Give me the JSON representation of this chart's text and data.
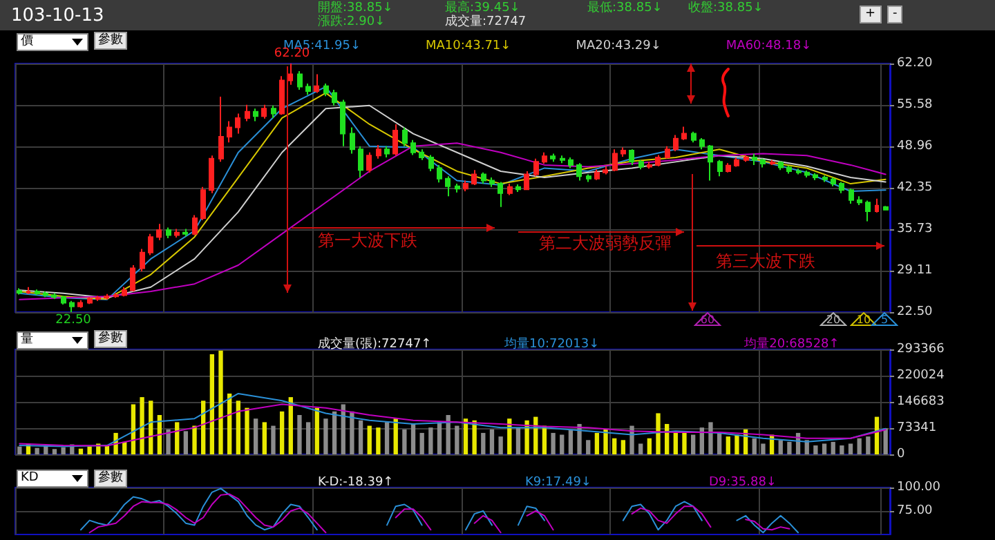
{
  "chart_data": [
    {
      "type": "other",
      "title": "103-10-13",
      "annotations": [
        "開盤:38.85↓",
        "最高:39.45↓",
        "最低:38.85↓",
        "收盤:38.85↓",
        "漲跌:2.90↓",
        "成交量:72747",
        "+",
        "-"
      ]
    },
    {
      "type": "candlestick",
      "categories": [
        null,
        null,
        null,
        null,
        null,
        null,
        null,
        null,
        null,
        null,
        null,
        null,
        null,
        null,
        null,
        null,
        null,
        null,
        null,
        null,
        null,
        null,
        null,
        null,
        null,
        null,
        null,
        null,
        null,
        null,
        null,
        null,
        null,
        null,
        null,
        null,
        null,
        null,
        null,
        null,
        null,
        null,
        null,
        null,
        null,
        null,
        null,
        null,
        null,
        null,
        null,
        null,
        null,
        null,
        null,
        null,
        null,
        null,
        null,
        null,
        null,
        null,
        null,
        null,
        null,
        null,
        null,
        null,
        null,
        null,
        null,
        null,
        null,
        null,
        null,
        null,
        null,
        null,
        null,
        null,
        null,
        null,
        null,
        null,
        null,
        null,
        null,
        null,
        null,
        null,
        null,
        null,
        null,
        null,
        null,
        null,
        null,
        null,
        null,
        null
      ],
      "colors": [
        "#20e020",
        "#ff2020",
        "#20e020",
        "#20e020",
        "#20e020",
        "#20e020",
        "#20e020",
        "#ff2020",
        "#ff2020",
        "#ff2020",
        "#ff2020",
        "#ff2020",
        "#ff2020",
        "#ff2020",
        "#ff2020",
        "#ff2020",
        "#ff2020",
        "#20e020",
        "#ff2020",
        "#20e020",
        "#ff2020",
        "#ff2020",
        "#ff2020",
        "#ff2020",
        "#ff2020",
        "#ff2020",
        "#ff2020",
        "#20e020",
        "#ff2020",
        "#20e020",
        "#ff2020",
        "#ff2020",
        "#20e020",
        "#20e020",
        "#ff2020",
        "#20e020",
        "#20e020",
        "#20e020",
        "#20e020",
        "#20e020",
        "#ff2020",
        "#ff2020",
        "#20e020",
        "#ff2020",
        "#20e020",
        "#20e020",
        "#20e020",
        "#20e020",
        "#20e020",
        "#20e020",
        "#20e020",
        "#ff2020",
        "#ff2020",
        "#20e020",
        "#20e020",
        "#20e020",
        "#ff2020",
        "#20e020",
        "#ff2020",
        "#ff2020",
        "#ff2020",
        "#20e020",
        "#20e020",
        "#20e020",
        "#20e020",
        "#20e020",
        "#ff2020",
        "#ff2020",
        "#ff2020",
        "#ff2020",
        "#20e020",
        "#20e020",
        "#ff2020",
        "#ff2020",
        "#ff2020",
        "#ff2020",
        "#ff2020",
        "#20e020",
        "#20e020",
        "#20e020",
        "#20e020",
        "#ff2020",
        "#ff2020",
        "#ff2020",
        "#20e020",
        "#20e020",
        "#ff2020",
        "#20e020",
        "#20e020",
        "#20e020",
        "#20e020",
        "#20e020",
        "#20e020",
        "#20e020",
        "#20e020",
        "#20e020",
        "#20e020",
        "#20e020",
        "#ff2020",
        "#20e020"
      ],
      "ohlc": [
        [
          25.9,
          26.3,
          25.3,
          25.6
        ],
        [
          25.6,
          26.5,
          25.4,
          25.8
        ],
        [
          25.8,
          26.1,
          25.2,
          25.5
        ],
        [
          25.5,
          25.8,
          24.9,
          25.2
        ],
        [
          25.2,
          25.5,
          24.6,
          24.9
        ],
        [
          24.9,
          25.1,
          23.7,
          24.0
        ],
        [
          24.0,
          24.3,
          22.5,
          23.4
        ],
        [
          23.4,
          24.4,
          23.2,
          24.0
        ],
        [
          24.0,
          24.9,
          23.8,
          24.6
        ],
        [
          24.6,
          25.1,
          24.3,
          24.8
        ],
        [
          24.8,
          25.4,
          24.5,
          25.0
        ],
        [
          25.0,
          25.6,
          24.8,
          25.2
        ],
        [
          25.2,
          26.5,
          25.0,
          26.0
        ],
        [
          26.0,
          30.0,
          25.8,
          29.5
        ],
        [
          29.5,
          32.6,
          29.0,
          32.0
        ],
        [
          32.0,
          35.0,
          31.6,
          34.5
        ],
        [
          34.5,
          36.6,
          34.0,
          35.6
        ],
        [
          35.6,
          36.0,
          34.3,
          34.8
        ],
        [
          34.8,
          35.8,
          34.4,
          35.2
        ],
        [
          35.2,
          35.8,
          34.6,
          35.0
        ],
        [
          35.0,
          38.0,
          34.8,
          37.5
        ],
        [
          37.5,
          42.5,
          37.2,
          42.0
        ],
        [
          42.0,
          47.5,
          41.5,
          47.0
        ],
        [
          47.0,
          56.9,
          46.5,
          50.5
        ],
        [
          50.5,
          53.0,
          49.6,
          52.0
        ],
        [
          52.0,
          54.2,
          51.0,
          53.5
        ],
        [
          53.5,
          55.6,
          53.0,
          54.5
        ],
        [
          54.5,
          55.0,
          53.0,
          53.8
        ],
        [
          53.8,
          55.6,
          53.4,
          55.0
        ],
        [
          55.0,
          55.5,
          53.5,
          54.2
        ],
        [
          54.2,
          60.2,
          54.0,
          59.5
        ],
        [
          59.5,
          62.2,
          58.8,
          60.5
        ],
        [
          60.5,
          61.0,
          58.0,
          58.5
        ],
        [
          58.5,
          59.0,
          57.2,
          57.8
        ],
        [
          57.8,
          60.5,
          57.5,
          58.6
        ],
        [
          58.6,
          59.0,
          57.0,
          57.5
        ],
        [
          57.5,
          58.0,
          55.5,
          56.0
        ],
        [
          56.0,
          56.4,
          49.0,
          51.0
        ],
        [
          51.0,
          52.0,
          47.8,
          48.5
        ],
        [
          48.5,
          49.0,
          44.0,
          45.2
        ],
        [
          45.2,
          48.0,
          44.8,
          47.5
        ],
        [
          47.5,
          49.2,
          47.0,
          48.5
        ],
        [
          48.5,
          49.0,
          47.2,
          47.8
        ],
        [
          47.8,
          52.5,
          47.5,
          51.5
        ],
        [
          51.5,
          52.0,
          49.0,
          49.5
        ],
        [
          49.5,
          50.0,
          47.6,
          48.0
        ],
        [
          48.0,
          48.5,
          46.8,
          47.2
        ],
        [
          47.2,
          47.6,
          45.0,
          45.5
        ],
        [
          45.5,
          46.0,
          43.2,
          43.8
        ],
        [
          43.8,
          44.2,
          41.0,
          42.6
        ],
        [
          42.6,
          43.0,
          41.6,
          42.2
        ],
        [
          42.2,
          43.5,
          41.8,
          43.0
        ],
        [
          43.0,
          45.2,
          42.8,
          44.5
        ],
        [
          44.5,
          44.8,
          43.0,
          43.5
        ],
        [
          43.5,
          44.0,
          42.5,
          43.0
        ],
        [
          43.0,
          43.3,
          39.3,
          41.5
        ],
        [
          41.5,
          43.0,
          41.2,
          42.5
        ],
        [
          42.5,
          42.9,
          41.7,
          42.1
        ],
        [
          42.1,
          45.0,
          42.0,
          44.5
        ],
        [
          44.5,
          47.0,
          44.2,
          46.5
        ],
        [
          46.5,
          48.0,
          46.2,
          47.4
        ],
        [
          47.4,
          47.8,
          46.5,
          47.0
        ],
        [
          47.0,
          47.5,
          46.3,
          46.8
        ],
        [
          46.8,
          47.2,
          45.5,
          46.0
        ],
        [
          46.0,
          46.3,
          43.5,
          44.2
        ],
        [
          44.2,
          44.5,
          43.3,
          43.8
        ],
        [
          43.8,
          45.3,
          43.6,
          44.8
        ],
        [
          44.8,
          45.8,
          44.5,
          45.2
        ],
        [
          45.2,
          48.5,
          45.0,
          47.8
        ],
        [
          47.8,
          48.8,
          47.3,
          48.3
        ],
        [
          48.3,
          48.5,
          46.0,
          46.5
        ],
        [
          46.5,
          46.8,
          45.3,
          45.7
        ],
        [
          45.7,
          46.5,
          45.4,
          46.0
        ],
        [
          46.0,
          47.6,
          45.8,
          47.2
        ],
        [
          47.2,
          49.0,
          47.0,
          48.5
        ],
        [
          48.5,
          50.8,
          48.2,
          50.2
        ],
        [
          50.2,
          52.1,
          50.0,
          51.0
        ],
        [
          51.0,
          51.3,
          49.6,
          50.0
        ],
        [
          50.0,
          50.3,
          48.5,
          49.0
        ],
        [
          49.0,
          49.2,
          43.5,
          46.5
        ],
        [
          46.5,
          46.8,
          44.2,
          45.0
        ],
        [
          45.0,
          46.3,
          44.8,
          45.9
        ],
        [
          45.9,
          47.2,
          45.7,
          46.8
        ],
        [
          46.8,
          47.6,
          46.5,
          47.2
        ],
        [
          47.2,
          47.8,
          46.0,
          46.8
        ],
        [
          46.8,
          47.0,
          45.6,
          46.2
        ],
        [
          46.2,
          46.8,
          46.0,
          46.4
        ],
        [
          46.4,
          46.6,
          45.2,
          45.6
        ],
        [
          45.6,
          45.9,
          44.6,
          45.0
        ],
        [
          45.0,
          45.4,
          44.5,
          44.8
        ],
        [
          44.8,
          45.1,
          44.0,
          44.4
        ],
        [
          44.4,
          44.7,
          43.6,
          44.0
        ],
        [
          44.0,
          44.3,
          43.3,
          43.7
        ],
        [
          43.7,
          44.0,
          42.6,
          43.0
        ],
        [
          43.0,
          43.3,
          41.5,
          42.0
        ],
        [
          42.0,
          42.2,
          39.8,
          40.4
        ],
        [
          40.4,
          41.0,
          39.6,
          40.0
        ],
        [
          40.0,
          40.3,
          37.0,
          38.6
        ],
        [
          38.6,
          40.6,
          38.4,
          39.5
        ],
        [
          39.3,
          39.45,
          38.85,
          38.85
        ]
      ],
      "series": [
        {
          "type": "line",
          "name": "MA5:41.95↓",
          "color": "#2a90d8",
          "values": [
            25.5,
            null,
            null,
            null,
            null,
            24.8,
            null,
            null,
            null,
            null,
            24.5,
            null,
            null,
            null,
            null,
            31,
            null,
            null,
            null,
            null,
            35.5,
            null,
            null,
            null,
            null,
            48,
            null,
            null,
            null,
            null,
            55,
            null,
            null,
            null,
            null,
            58.5,
            null,
            null,
            null,
            null,
            49,
            null,
            null,
            null,
            null,
            48.8,
            null,
            null,
            null,
            null,
            43.5,
            null,
            null,
            null,
            null,
            42.8,
            null,
            null,
            null,
            null,
            45.5,
            null,
            null,
            null,
            null,
            45,
            null,
            null,
            null,
            null,
            47,
            null,
            null,
            null,
            null,
            48.5,
            null,
            null,
            null,
            null,
            47.5,
            null,
            null,
            null,
            null,
            46.5,
            null,
            null,
            null,
            null,
            44.8,
            null,
            null,
            null,
            null,
            41.8,
            null,
            null,
            null,
            42.0
          ]
        },
        {
          "type": "line",
          "name": "MA10:43.71↓",
          "color": "#d8c800",
          "values": [
            25.8,
            null,
            null,
            null,
            null,
            25,
            null,
            null,
            null,
            null,
            24.6,
            null,
            null,
            null,
            null,
            28.5,
            null,
            null,
            null,
            null,
            34.5,
            null,
            null,
            null,
            null,
            44,
            null,
            null,
            null,
            null,
            53.5,
            null,
            null,
            null,
            null,
            57.5,
            null,
            null,
            null,
            null,
            52.5,
            null,
            null,
            null,
            null,
            48.5,
            null,
            null,
            null,
            null,
            45,
            null,
            null,
            null,
            null,
            43,
            null,
            null,
            null,
            null,
            44.2,
            null,
            null,
            null,
            null,
            45.5,
            null,
            null,
            null,
            null,
            46.6,
            null,
            null,
            null,
            null,
            47.2,
            null,
            null,
            null,
            null,
            48.5,
            null,
            null,
            null,
            null,
            46.6,
            null,
            null,
            null,
            null,
            45.5,
            null,
            null,
            null,
            null,
            43,
            null,
            null,
            null,
            43.7
          ]
        },
        {
          "type": "line",
          "name": "MA20:43.29↓",
          "color": "#d0d0d0",
          "values": [
            26,
            null,
            null,
            null,
            null,
            25.5,
            null,
            null,
            null,
            null,
            24.8,
            null,
            null,
            null,
            null,
            26.5,
            null,
            null,
            null,
            null,
            31,
            null,
            null,
            null,
            null,
            38.5,
            null,
            null,
            null,
            null,
            48,
            null,
            null,
            null,
            null,
            55,
            null,
            null,
            null,
            null,
            55.5,
            null,
            null,
            null,
            null,
            51,
            null,
            null,
            null,
            null,
            48,
            null,
            null,
            null,
            null,
            45,
            null,
            null,
            null,
            null,
            44,
            null,
            null,
            null,
            null,
            44.8,
            null,
            null,
            null,
            null,
            45.5,
            null,
            null,
            null,
            null,
            46.5,
            null,
            null,
            null,
            null,
            47.5,
            null,
            null,
            null,
            null,
            47,
            null,
            null,
            null,
            null,
            45.8,
            null,
            null,
            null,
            null,
            44,
            null,
            null,
            null,
            43.3
          ]
        },
        {
          "type": "line",
          "name": "MA60:48.18↓",
          "color": "#c000c0",
          "values": [
            24.5,
            null,
            null,
            null,
            null,
            24.8,
            null,
            null,
            null,
            null,
            25,
            null,
            null,
            null,
            null,
            25.8,
            null,
            null,
            null,
            null,
            27,
            null,
            null,
            null,
            null,
            30,
            null,
            null,
            null,
            null,
            35,
            null,
            null,
            null,
            null,
            40,
            null,
            null,
            null,
            null,
            45,
            null,
            null,
            null,
            null,
            49,
            null,
            null,
            null,
            null,
            49.5,
            null,
            null,
            null,
            null,
            48,
            null,
            null,
            null,
            null,
            46,
            null,
            null,
            null,
            null,
            45.7,
            null,
            null,
            null,
            null,
            46.2,
            null,
            null,
            null,
            null,
            46.8,
            null,
            null,
            null,
            null,
            47.5,
            null,
            null,
            null,
            null,
            47.8,
            null,
            null,
            null,
            null,
            47.5,
            null,
            null,
            null,
            null,
            46,
            null,
            null,
            null,
            44.5
          ]
        }
      ],
      "ylim": [
        22.5,
        62.2
      ],
      "yticks": [
        {
          "value": 62.2,
          "label": "62.20"
        },
        55.58,
        48.96,
        42.35,
        35.73,
        29.11,
        {
          "value": 22.5,
          "label": "22.50"
        }
      ],
      "grid": true,
      "legend": "top",
      "tick_labels": "y",
      "annotations": [
        {
          "text": "62.20",
          "y": 62.2
        },
        {
          "text": "22.50",
          "y": 22.5
        },
        "第一大波下跌",
        "第二大波弱勢反彈",
        "第三大波下跌",
        "60",
        "20",
        "10",
        "5",
        "價",
        "參數"
      ]
    },
    {
      "type": "bar",
      "title": "成交量(張):72747↑",
      "categories": [
        null,
        null,
        null,
        null,
        null,
        null,
        null,
        null,
        null,
        null,
        null,
        null,
        null,
        null,
        null,
        null,
        null,
        null,
        null,
        null,
        null,
        null,
        null,
        null,
        null,
        null,
        null,
        null,
        null,
        null,
        null,
        null,
        null,
        null,
        null,
        null,
        null,
        null,
        null,
        null,
        null,
        null,
        null,
        null,
        null,
        null,
        null,
        null,
        null,
        null,
        null,
        null,
        null,
        null,
        null,
        null,
        null,
        null,
        null,
        null,
        null,
        null,
        null,
        null,
        null,
        null,
        null,
        null,
        null,
        null,
        null,
        null,
        null,
        null,
        null,
        null,
        null,
        null,
        null,
        null,
        null,
        null,
        null,
        null,
        null,
        null,
        null,
        null,
        null,
        null,
        null,
        null,
        null,
        null,
        null,
        null,
        null,
        null,
        null,
        null
      ],
      "series": [
        {
          "type": "bar",
          "colors": [
            "#8c8c8c",
            "#e8e800",
            "#8c8c8c",
            "#8c8c8c",
            "#8c8c8c",
            "#8c8c8c",
            "#8c8c8c",
            "#e8e800",
            "#e8e800",
            "#e8e800",
            "#e8e800",
            "#e8e800",
            "#e8e800",
            "#e8e800",
            "#e8e800",
            "#e8e800",
            "#e8e800",
            "#8c8c8c",
            "#e8e800",
            "#8c8c8c",
            "#e8e800",
            "#e8e800",
            "#e8e800",
            "#e8e800",
            "#e8e800",
            "#e8e800",
            "#e8e800",
            "#8c8c8c",
            "#e8e800",
            "#8c8c8c",
            "#e8e800",
            "#e8e800",
            "#8c8c8c",
            "#8c8c8c",
            "#e8e800",
            "#8c8c8c",
            "#8c8c8c",
            "#8c8c8c",
            "#8c8c8c",
            "#8c8c8c",
            "#e8e800",
            "#e8e800",
            "#8c8c8c",
            "#e8e800",
            "#8c8c8c",
            "#8c8c8c",
            "#8c8c8c",
            "#8c8c8c",
            "#8c8c8c",
            "#8c8c8c",
            "#8c8c8c",
            "#e8e800",
            "#e8e800",
            "#8c8c8c",
            "#8c8c8c",
            "#8c8c8c",
            "#e8e800",
            "#8c8c8c",
            "#e8e800",
            "#e8e800",
            "#e8e800",
            "#8c8c8c",
            "#8c8c8c",
            "#8c8c8c",
            "#8c8c8c",
            "#8c8c8c",
            "#e8e800",
            "#e8e800",
            "#e8e800",
            "#e8e800",
            "#8c8c8c",
            "#8c8c8c",
            "#e8e800",
            "#e8e800",
            "#e8e800",
            "#e8e800",
            "#e8e800",
            "#8c8c8c",
            "#8c8c8c",
            "#8c8c8c",
            "#8c8c8c",
            "#e8e800",
            "#e8e800",
            "#e8e800",
            "#8c8c8c",
            "#8c8c8c",
            "#e8e800",
            "#8c8c8c",
            "#8c8c8c",
            "#8c8c8c",
            "#8c8c8c",
            "#8c8c8c",
            "#8c8c8c",
            "#8c8c8c",
            "#8c8c8c",
            "#8c8c8c",
            "#8c8c8c",
            "#8c8c8c",
            "#e8e800",
            "#8c8c8c"
          ],
          "values": [
            22000,
            30000,
            18000,
            25000,
            15000,
            20000,
            28000,
            16000,
            22000,
            30000,
            25000,
            60000,
            35000,
            140000,
            160000,
            150000,
            110000,
            70000,
            90000,
            65000,
            80000,
            150000,
            280000,
            290000,
            170000,
            150000,
            130000,
            100000,
            90000,
            80000,
            120000,
            160000,
            110000,
            90000,
            130000,
            100000,
            120000,
            140000,
            120000,
            95000,
            80000,
            75000,
            90000,
            100000,
            70000,
            85000,
            60000,
            75000,
            90000,
            110000,
            80000,
            100000,
            95000,
            60000,
            70000,
            50000,
            100000,
            75000,
            95000,
            105000,
            80000,
            60000,
            55000,
            70000,
            85000,
            40000,
            60000,
            70000,
            45000,
            40000,
            80000,
            30000,
            45000,
            115000,
            85000,
            60000,
            65000,
            55000,
            75000,
            90000,
            60000,
            50000,
            55000,
            70000,
            45000,
            30000,
            55000,
            40000,
            35000,
            60000,
            40000,
            25000,
            30000,
            35000,
            25000,
            30000,
            45000,
            50000,
            105000,
            73000
          ]
        },
        {
          "type": "line",
          "name": "均量10:72013↓",
          "color": "#2a90d8",
          "values": [
            25000,
            null,
            null,
            null,
            null,
            22000,
            null,
            null,
            null,
            null,
            25000,
            null,
            null,
            null,
            null,
            90000,
            null,
            null,
            null,
            null,
            100000,
            null,
            null,
            null,
            null,
            170000,
            null,
            null,
            null,
            null,
            150000,
            null,
            null,
            null,
            null,
            115000,
            null,
            null,
            null,
            null,
            95000,
            null,
            null,
            null,
            null,
            85000,
            null,
            null,
            null,
            null,
            90000,
            null,
            null,
            null,
            null,
            75000,
            null,
            null,
            null,
            null,
            75000,
            null,
            null,
            null,
            null,
            65000,
            null,
            null,
            null,
            null,
            55000,
            null,
            null,
            null,
            null,
            65000,
            null,
            null,
            null,
            null,
            60000,
            null,
            null,
            null,
            null,
            45000,
            null,
            null,
            null,
            null,
            35000,
            null,
            null,
            null,
            null,
            45000,
            null,
            null,
            null,
            72000
          ]
        },
        {
          "type": "line",
          "name": "均量20:68528↑",
          "color": "#c000c0",
          "values": [
            30000,
            null,
            null,
            null,
            null,
            25000,
            null,
            null,
            null,
            null,
            24000,
            null,
            null,
            null,
            null,
            50000,
            null,
            null,
            null,
            null,
            75000,
            null,
            null,
            null,
            null,
            120000,
            null,
            null,
            null,
            null,
            140000,
            null,
            null,
            null,
            null,
            130000,
            null,
            null,
            null,
            null,
            110000,
            null,
            null,
            null,
            null,
            95000,
            null,
            null,
            null,
            null,
            90000,
            null,
            null,
            null,
            null,
            85000,
            null,
            null,
            null,
            null,
            78000,
            null,
            null,
            null,
            null,
            75000,
            null,
            null,
            null,
            null,
            65000,
            null,
            null,
            null,
            null,
            62000,
            null,
            null,
            null,
            null,
            62000,
            null,
            null,
            null,
            null,
            55000,
            null,
            null,
            null,
            null,
            45000,
            null,
            null,
            null,
            null,
            45000,
            null,
            null,
            null,
            69000
          ]
        }
      ],
      "ylim": [
        0,
        293366
      ],
      "yticks": [
        0,
        73341,
        146683,
        220024,
        293366
      ],
      "grid": true,
      "legend": "top",
      "tick_labels": "y",
      "annotations": [
        "量",
        "參數"
      ]
    },
    {
      "type": "line",
      "title": "K-D:-18.39↑",
      "categories": [
        null,
        null,
        null,
        null,
        null,
        null,
        null,
        null,
        null,
        null,
        null,
        null,
        null,
        null,
        null,
        null,
        null,
        null,
        null,
        null,
        null,
        null,
        null,
        null,
        null,
        null,
        null,
        null,
        null,
        null,
        null,
        null,
        null,
        null,
        null,
        null,
        null,
        null,
        null,
        null,
        null,
        null,
        null,
        null,
        null,
        null,
        null,
        null,
        null,
        null,
        null,
        null,
        null,
        null,
        null,
        null,
        null,
        null,
        null,
        null,
        null,
        null,
        null,
        null,
        null,
        null,
        null,
        null,
        null,
        null,
        null,
        null,
        null,
        null,
        null,
        null,
        null,
        null,
        null,
        null,
        null,
        null,
        null,
        null,
        null,
        null,
        null,
        null,
        null,
        null,
        null,
        null,
        null,
        null,
        null,
        null,
        null,
        null,
        null,
        null
      ],
      "series": [
        {
          "type": "line",
          "name": "K9:17.49↓",
          "color": "#2a90d8",
          "values": [
            null,
            null,
            null,
            null,
            null,
            null,
            null,
            55,
            65,
            62,
            60,
            70,
            82,
            90,
            88,
            84,
            86,
            80,
            72,
            62,
            60,
            80,
            95,
            99,
            92,
            85,
            70,
            60,
            55,
            58,
            72,
            82,
            80,
            68,
            55,
            null,
            null,
            null,
            null,
            null,
            null,
            null,
            60,
            80,
            82,
            76,
            60,
            null,
            null,
            null,
            null,
            55,
            72,
            75,
            60,
            null,
            null,
            60,
            80,
            78,
            65,
            null,
            null,
            null,
            null,
            null,
            null,
            null,
            null,
            65,
            80,
            82,
            72,
            55,
            65,
            80,
            85,
            80,
            65,
            null,
            null,
            null,
            65,
            70,
            60,
            52,
            62,
            70,
            62,
            52,
            null,
            null,
            null,
            null,
            null,
            null,
            null,
            null,
            null,
            null
          ]
        },
        {
          "type": "line",
          "name": "D9:35.88↓",
          "color": "#c000c0",
          "values": [
            null,
            null,
            null,
            null,
            null,
            null,
            null,
            null,
            52,
            58,
            60,
            62,
            70,
            80,
            85,
            84,
            84,
            82,
            76,
            68,
            62,
            68,
            82,
            92,
            93,
            88,
            78,
            68,
            60,
            58,
            65,
            75,
            78,
            72,
            62,
            52,
            null,
            null,
            null,
            null,
            null,
            null,
            null,
            68,
            77,
            77,
            68,
            55,
            null,
            null,
            null,
            null,
            62,
            70,
            65,
            52,
            null,
            null,
            70,
            75,
            70,
            55,
            null,
            null,
            null,
            null,
            null,
            null,
            null,
            null,
            72,
            78,
            75,
            65,
            62,
            72,
            80,
            80,
            72,
            58,
            null,
            null,
            null,
            66,
            64,
            56,
            55,
            58,
            56,
            null,
            null,
            null,
            null,
            null,
            null,
            null,
            null,
            null,
            null,
            null
          ]
        }
      ],
      "ylim": [
        50,
        100
      ],
      "yticks": [
        {
          "value": 100,
          "label": "100.00"
        },
        {
          "value": 75,
          "label": "75.00"
        }
      ],
      "grid": true,
      "legend": "top",
      "tick_labels": "y",
      "annotations": [
        "KD",
        "參數"
      ]
    }
  ]
}
